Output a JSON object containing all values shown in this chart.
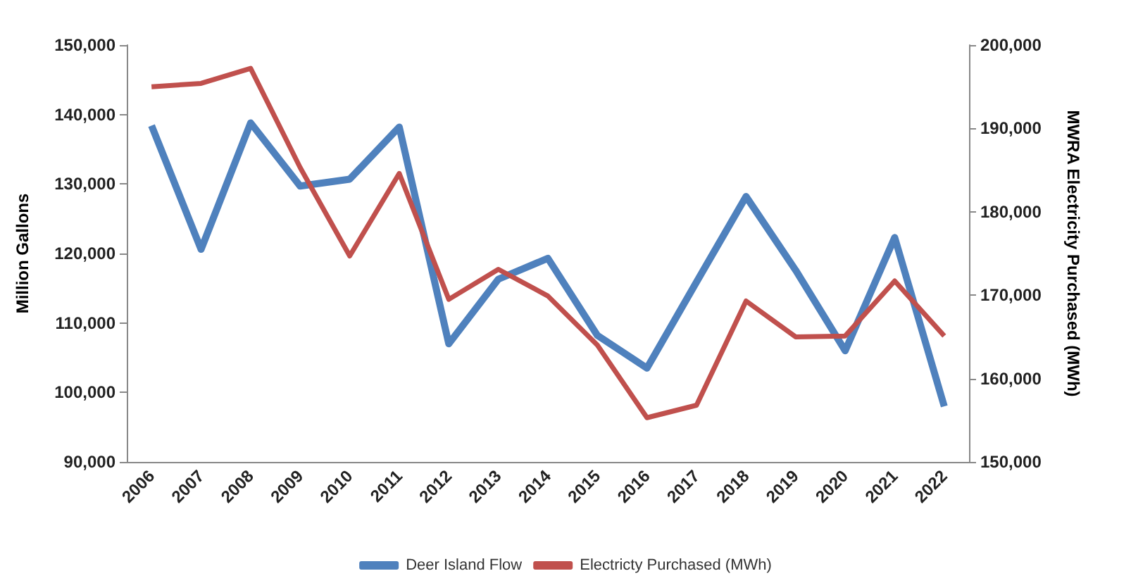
{
  "chart_data": {
    "type": "line",
    "ylabel": "Million Gallons",
    "y2label": "MWRA Electricity Purchased (MWh)",
    "categories": [
      "2006",
      "2007",
      "2008",
      "2009",
      "2010",
      "2011",
      "2012",
      "2013",
      "2014",
      "2015",
      "2016",
      "2017",
      "2018",
      "2019",
      "2020",
      "2021",
      "2022"
    ],
    "series": [
      {
        "name": "Deer Island Flow",
        "color": "#4f81bd",
        "values": [
          138400,
          120600,
          138800,
          129700,
          130700,
          138200,
          107000,
          116300,
          119300,
          108200,
          103500,
          115900,
          128200,
          117600,
          106000,
          122300,
          98000
        ]
      },
      {
        "name": "Electricty Purchased (MWh)",
        "color": "#c0504d",
        "axis": "y2",
        "values": [
          195000,
          195400,
          197200,
          185300,
          174700,
          184600,
          169500,
          173100,
          169900,
          164000,
          155300,
          156800,
          169300,
          165000,
          165100,
          171700,
          165100
        ]
      }
    ],
    "ylim": [
      90000,
      150000
    ],
    "yticks": [
      {
        "value": 90000,
        "label": "90,000"
      },
      {
        "value": 100000,
        "label": "100,000"
      },
      {
        "value": 110000,
        "label": "110,000"
      },
      {
        "value": 120000,
        "label": "120,000"
      },
      {
        "value": 130000,
        "label": "130,000"
      },
      {
        "value": 140000,
        "label": "140,000"
      },
      {
        "value": 150000,
        "label": "150,000"
      }
    ],
    "y2lim": [
      150000,
      200000
    ],
    "y2ticks": [
      {
        "value": 150000,
        "label": "150,000"
      },
      {
        "value": 160000,
        "label": "160,000"
      },
      {
        "value": 170000,
        "label": "170,000"
      },
      {
        "value": 180000,
        "label": "180,000"
      },
      {
        "value": 190000,
        "label": "190,000"
      },
      {
        "value": 200000,
        "label": "200,000"
      }
    ],
    "grid": false,
    "legend": "bottom",
    "marker": "none",
    "line_style": "solid"
  }
}
